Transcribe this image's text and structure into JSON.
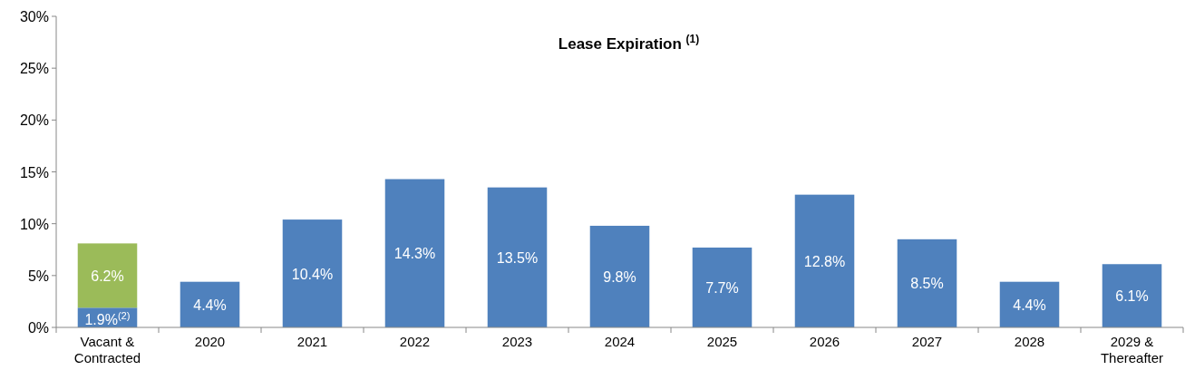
{
  "chart_data": {
    "type": "bar",
    "stacked": true,
    "title": "Lease Expiration $^{(1)}$",
    "categories": [
      "Vacant &\nContracted",
      "2020",
      "2021",
      "2022",
      "2023",
      "2024",
      "2025",
      "2026",
      "2027",
      "2028",
      "2029 &\nThereafter"
    ],
    "series": [
      {
        "color": "#4f81bd",
        "values": [
          1.9,
          4.4,
          10.4,
          14.3,
          13.5,
          9.8,
          7.7,
          12.8,
          8.5,
          4.4,
          6.1
        ],
        "value_labels": [
          "1.9%$^{(2)}$",
          "4.4%",
          "10.4%",
          "14.3%",
          "13.5%",
          "9.8%",
          "7.7%",
          "12.8%",
          "8.5%",
          "4.4%",
          "6.1%"
        ]
      },
      {
        "color": "#9bbb59",
        "values": [
          6.2,
          null,
          null,
          null,
          null,
          null,
          null,
          null,
          null,
          null,
          null
        ],
        "value_labels": [
          "6.2%",
          null,
          null,
          null,
          null,
          null,
          null,
          null,
          null,
          null,
          null
        ]
      }
    ],
    "ylim": [
      0,
      30
    ],
    "yticks": [
      {
        "value": 0,
        "label": "0%"
      },
      {
        "value": 5,
        "label": "5%"
      },
      {
        "value": 10,
        "label": "10%"
      },
      {
        "value": 15,
        "label": "15%"
      },
      {
        "value": 20,
        "label": "20%"
      },
      {
        "value": 25,
        "label": "25%"
      },
      {
        "value": 30,
        "label": "30%"
      }
    ],
    "grid": false
  }
}
